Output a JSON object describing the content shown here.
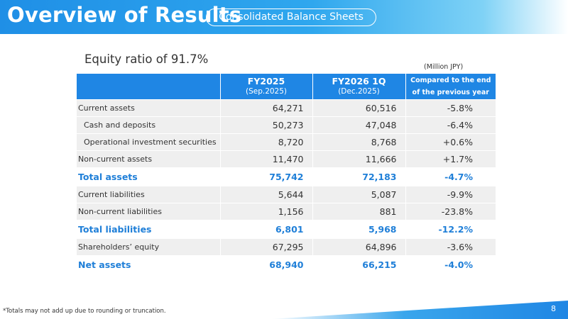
{
  "header": {
    "title": "Overview of Results",
    "section": "Consolidated Balance Sheets"
  },
  "subtitle": "Equity ratio of 91.7%",
  "unit": "(Million JPY)",
  "table": {
    "columns": [
      {
        "main": "FY2025",
        "sub": "(Sep.2025)"
      },
      {
        "main": "FY2026 1Q",
        "sub": "(Dec.2025)"
      },
      {
        "line1": "Compared to the end",
        "line2": "of the previous year"
      }
    ],
    "rows": [
      {
        "label": "Current assets",
        "fy2025": "64,271",
        "fy2026": "60,516",
        "change": "-5.8%"
      },
      {
        "label": "Cash and deposits",
        "fy2025": "50,273",
        "fy2026": "47,048",
        "change": "-6.4%"
      },
      {
        "label": "Operational investment securities",
        "fy2025": "8,720",
        "fy2026": "8,768",
        "change": "+0.6%"
      },
      {
        "label": "Non-current assets",
        "fy2025": "11,470",
        "fy2026": "11,666",
        "change": "+1.7%"
      },
      {
        "label": "Total assets",
        "fy2025": "75,742",
        "fy2026": "72,183",
        "change": "-4.7%"
      },
      {
        "label": "Current liabilities",
        "fy2025": "5,644",
        "fy2026": "5,087",
        "change": "-9.9%"
      },
      {
        "label": "Non-current liabilities",
        "fy2025": "1,156",
        "fy2026": "881",
        "change": "-23.8%"
      },
      {
        "label": "Total liabilities",
        "fy2025": "6,801",
        "fy2026": "5,968",
        "change": "-12.2%"
      },
      {
        "label": "Shareholders’ equity",
        "fy2025": "67,295",
        "fy2026": "64,896",
        "change": "-3.6%"
      },
      {
        "label": "Net assets",
        "fy2025": "68,940",
        "fy2026": "66,215",
        "change": "-4.0%"
      }
    ]
  },
  "footnote": "*Totals may not add up due to rounding or truncation.",
  "page_number": "8",
  "colors": {
    "brand_blue": "#1f86e4",
    "total_text": "#1f7fd8",
    "row_shade": "#efefef"
  }
}
